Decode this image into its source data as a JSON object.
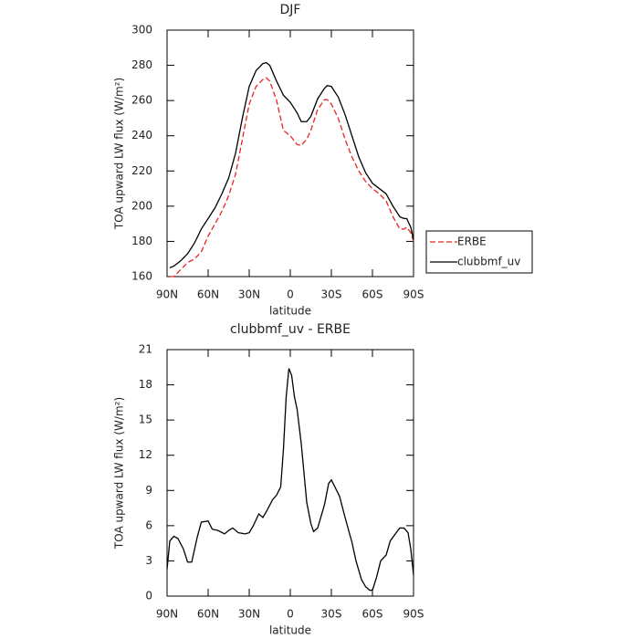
{
  "chart_data": [
    {
      "type": "line",
      "title": "DJF",
      "xlabel": "latitude",
      "ylabel": "TOA upward LW flux (W/m²)",
      "x": [
        88,
        85,
        80,
        75,
        70,
        65,
        60,
        55,
        50,
        45,
        40,
        35,
        30,
        25,
        20,
        17.5,
        15,
        10,
        5,
        0,
        -5,
        -8,
        -12,
        -15,
        -20,
        -25,
        -27,
        -30,
        -35,
        -40,
        -45,
        -50,
        -55,
        -60,
        -65,
        -70,
        -75,
        -80,
        -83,
        -85,
        -88,
        -90
      ],
      "series": [
        {
          "name": "ERBE",
          "color": "#e8251f",
          "style": "dashed",
          "values": [
            160,
            160,
            164,
            168,
            170,
            174,
            183,
            190,
            197,
            206,
            218,
            238,
            258,
            268,
            272,
            273,
            271,
            260,
            243,
            240,
            235,
            234.5,
            238,
            243,
            255,
            260.5,
            260.5,
            258,
            250,
            238,
            228,
            220,
            214,
            210,
            207,
            203,
            194,
            187,
            187,
            188,
            185,
            180
          ]
        },
        {
          "name": "clubbmf_uv",
          "color": "#000000",
          "style": "solid",
          "values": [
            165,
            166,
            169,
            173,
            179,
            187,
            193,
            199,
            207,
            216,
            230,
            250,
            268,
            277,
            281,
            281.5,
            280,
            271,
            263,
            259,
            253,
            248,
            248,
            251,
            261,
            267,
            268.5,
            268,
            262,
            252,
            240,
            228,
            219,
            213,
            210,
            207,
            200,
            194,
            193,
            193,
            188,
            181
          ]
        }
      ],
      "xlim": [
        90,
        -90
      ],
      "xticks": [
        {
          "value": 90,
          "label": "90N"
        },
        {
          "value": 60,
          "label": "60N"
        },
        {
          "value": 30,
          "label": "30N"
        },
        0,
        {
          "value": -30,
          "label": "30S"
        },
        {
          "value": -60,
          "label": "60S"
        },
        {
          "value": -90,
          "label": "90S"
        }
      ],
      "ylim": [
        160,
        300
      ],
      "yticks": [
        160,
        180,
        200,
        220,
        240,
        260,
        280,
        300
      ],
      "legend": "right"
    },
    {
      "type": "line",
      "title": "clubbmf_uv - ERBE",
      "xlabel": "latitude",
      "ylabel": "TOA upward LW flux (W/m²)",
      "x": [
        90,
        88,
        85,
        82,
        78,
        75,
        72,
        68,
        65,
        60,
        57,
        53,
        48,
        45,
        42,
        38,
        33,
        30,
        27,
        23,
        20,
        17,
        13,
        10,
        7,
        5,
        3,
        1,
        -1,
        -3,
        -5,
        -8,
        -12,
        -15,
        -17,
        -20,
        -25,
        -28,
        -30,
        -33,
        -36,
        -40,
        -45,
        -48,
        -52,
        -55,
        -58,
        -60,
        -63,
        -66,
        -70,
        -73,
        -78,
        -80,
        -83,
        -86,
        -88,
        -90
      ],
      "values": [
        2.3,
        4.7,
        5.1,
        4.9,
        4.0,
        2.9,
        2.9,
        5.0,
        6.3,
        6.4,
        5.7,
        5.6,
        5.3,
        5.6,
        5.8,
        5.4,
        5.3,
        5.4,
        6.0,
        7.0,
        6.7,
        7.3,
        8.2,
        8.6,
        9.3,
        12.5,
        17,
        19.4,
        18.8,
        17,
        15.9,
        13,
        8,
        6.2,
        5.5,
        5.8,
        7.8,
        9.6,
        9.9,
        9.2,
        8.5,
        6.7,
        4.6,
        3,
        1.4,
        0.8,
        0.5,
        0.5,
        1.6,
        3.0,
        3.5,
        4.7,
        5.5,
        5.8,
        5.8,
        5.4,
        4,
        1.8
      ],
      "color": "#000000",
      "xlim": [
        90,
        -90
      ],
      "xticks": [
        {
          "value": 90,
          "label": "90N"
        },
        {
          "value": 60,
          "label": "60N"
        },
        {
          "value": 30,
          "label": "30N"
        },
        0,
        {
          "value": -30,
          "label": "30S"
        },
        {
          "value": -60,
          "label": "60S"
        },
        {
          "value": -90,
          "label": "90S"
        }
      ],
      "ylim": [
        0,
        21
      ],
      "yticks": [
        0,
        3,
        6,
        9,
        12,
        15,
        18,
        21
      ]
    }
  ]
}
